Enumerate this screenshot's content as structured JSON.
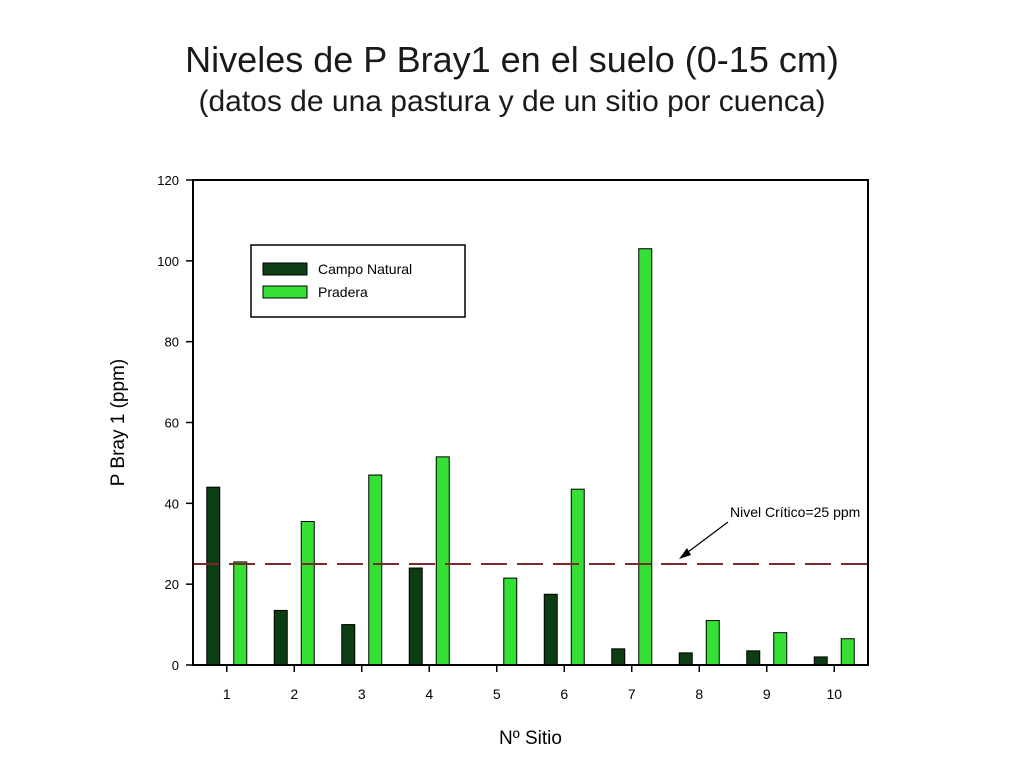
{
  "slide": {
    "title": "Niveles de P Bray1 en el suelo (0-15 cm)",
    "subtitle": "(datos de una pastura y de un sitio por cuenca)"
  },
  "chart_data": {
    "type": "bar",
    "categories": [
      "1",
      "2",
      "3",
      "4",
      "5",
      "6",
      "7",
      "8",
      "9",
      "10"
    ],
    "series": [
      {
        "name": "Campo Natural",
        "color": "#0d3d12",
        "values": [
          44,
          13.5,
          10,
          24,
          0,
          17.5,
          4,
          3,
          3.5,
          2
        ]
      },
      {
        "name": "Pradera",
        "color": "#33e033",
        "values": [
          25.5,
          35.5,
          47,
          51.5,
          21.5,
          43.5,
          103,
          11,
          8,
          6.5
        ]
      }
    ],
    "xlabel": "Nº Sitio",
    "ylabel": "P Bray 1 (ppm)",
    "ylim": [
      0,
      120
    ],
    "yticks": [
      0,
      20,
      40,
      60,
      80,
      100,
      120
    ],
    "grid": false,
    "legend_position": "top-left",
    "reference_line": {
      "value": 25,
      "label": "Nivel Crítico=25 ppm",
      "color": "#7a2a2a",
      "style": "dashed"
    }
  }
}
